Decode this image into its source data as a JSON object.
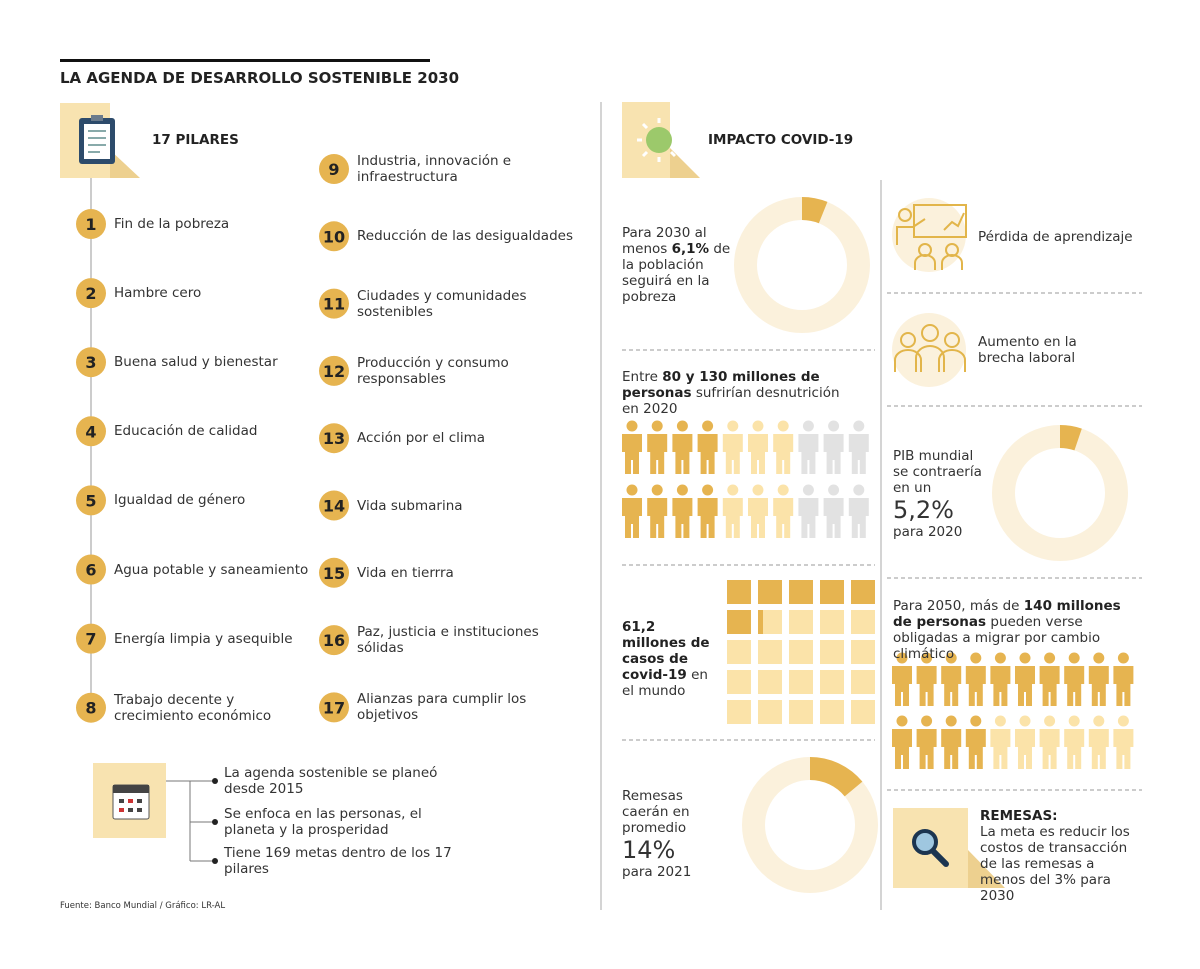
{
  "title": "LA AGENDA DE DESARROLLO SOSTENIBLE 2030",
  "pillars": {
    "heading": "17 PILARES",
    "items": [
      {
        "number": 1,
        "label": "Fin de la pobreza"
      },
      {
        "number": 2,
        "label": "Hambre cero"
      },
      {
        "number": 3,
        "label": "Buena salud y bienestar"
      },
      {
        "number": 4,
        "label": "Educación de calidad"
      },
      {
        "number": 5,
        "label": "Igualdad de género"
      },
      {
        "number": 6,
        "label": "Agua potable y saneamiento"
      },
      {
        "number": 7,
        "label": "Energía limpia y asequible"
      },
      {
        "number": 8,
        "label": "Trabajo decente y crecimiento económico"
      },
      {
        "number": 9,
        "label": "Industria, innovación e infraestructura"
      },
      {
        "number": 10,
        "label": "Reducción de las desigualdades"
      },
      {
        "number": 11,
        "label": "Ciudades y comunidades sostenibles"
      },
      {
        "number": 12,
        "label": "Producción y consumo responsables"
      },
      {
        "number": 13,
        "label": "Acción por el clima"
      },
      {
        "number": 14,
        "label": "Vida submarina"
      },
      {
        "number": 15,
        "label": "Vida en tierrra"
      },
      {
        "number": 16,
        "label": "Paz, justicia e instituciones sólidas"
      },
      {
        "number": 17,
        "label": "Alianzas para cumplir los objetivos"
      }
    ]
  },
  "notes": [
    "La agenda sostenible se planeó desde 2015",
    "Se enfoca en las personas, el planeta y la prosperidad",
    "Tiene 169 metas dentro de los 17 pilares"
  ],
  "source": "Fuente: Banco Mundial / Gráfico: LR-AL",
  "covid": {
    "heading": "IMPACTO COVID-19",
    "poverty": {
      "before": "Para 2030 al menos",
      "highlight": "6,1%",
      "after": "de la población seguirá en la pobreza",
      "share": 6.1
    },
    "undernutrition": {
      "before": "Entre",
      "highlight": "80 y 130 millones de personas",
      "after": "sufrirían desnutrición en 2020"
    },
    "cases": {
      "highlight": "61,2 millones de casos de covid-19",
      "after": "en el mundo"
    },
    "remittances_drop": {
      "before": "Remesas caerán en promedio",
      "highlight": "14%",
      "after": "para 2021",
      "share": 14
    },
    "learning": "Pérdida de aprendizaje",
    "labor": "Aumento en la brecha laboral",
    "gdp": {
      "before": "PIB mundial se contraería en un",
      "highlight": "5,2%",
      "after": "para 2020",
      "share": 5.2
    },
    "migration": {
      "before": "Para 2050, más de",
      "highlight": "140 millones de personas",
      "after": "pueden verse obligadas a migrar por cambio climático"
    },
    "remittances_goal": {
      "heading": "REMESAS:",
      "text": "La meta es reducir los costos de transacción de las remesas a menos del 3% para 2030"
    }
  }
}
